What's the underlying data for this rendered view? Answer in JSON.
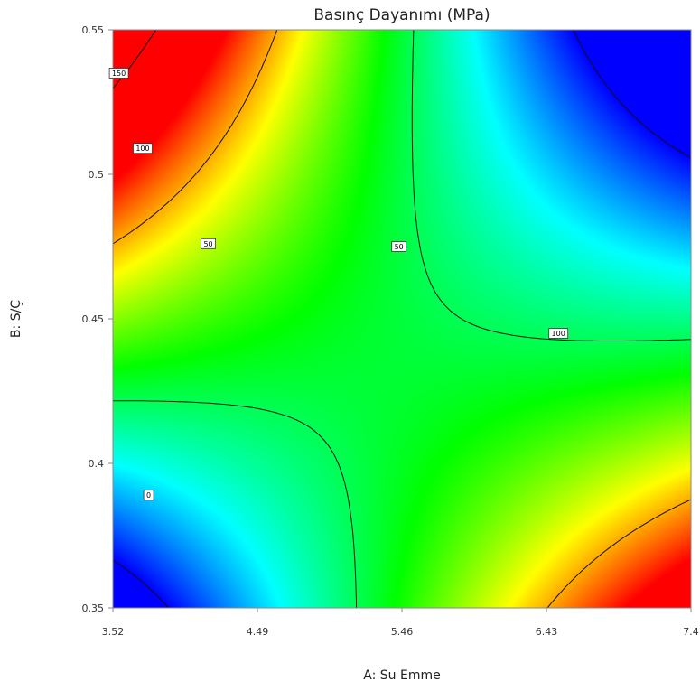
{
  "chart_data": {
    "type": "heatmap",
    "title": "Basınç Dayanımı (MPa)",
    "xlabel": "A: Su Emme",
    "ylabel": "B: S/Ç",
    "xlim": [
      3.52,
      7.4
    ],
    "ylim": [
      0.35,
      0.55
    ],
    "x_ticks": [
      "3.52",
      "4.49",
      "5.46",
      "6.43",
      "7.4"
    ],
    "y_ticks": [
      "0.35",
      "0.4",
      "0.45",
      "0.5",
      "0.55"
    ],
    "colormap": [
      "#0000ff",
      "#00ffff",
      "#00ff00",
      "#ffff00",
      "#ff0000"
    ],
    "color_range": [
      0,
      120
    ],
    "contour_levels": [
      0,
      50,
      100,
      150
    ],
    "contour_labels": [
      {
        "text": "150",
        "x": 3.56,
        "y": 0.535
      },
      {
        "text": "100",
        "x": 3.72,
        "y": 0.509
      },
      {
        "text": "50",
        "x": 4.16,
        "y": 0.476
      },
      {
        "text": "50",
        "x": 5.44,
        "y": 0.475
      },
      {
        "text": "100",
        "x": 6.51,
        "y": 0.445
      },
      {
        "text": "0",
        "x": 3.76,
        "y": 0.389
      }
    ]
  }
}
